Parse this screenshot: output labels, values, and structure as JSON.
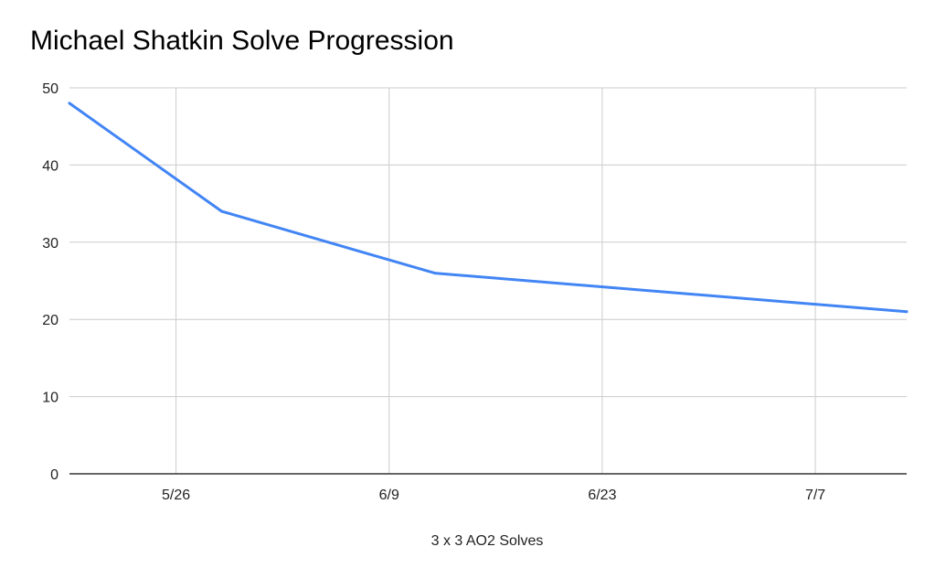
{
  "chart_data": {
    "type": "line",
    "title": "Michael Shatkin Solve Progression",
    "xlabel": "3 x 3 AO2 Solves",
    "ylabel": "",
    "x": [
      "2020-05-19",
      "2020-05-29",
      "2020-06-12",
      "2020-07-13"
    ],
    "y": [
      48,
      34,
      26,
      21
    ],
    "xticks": [
      {
        "date": "2020-05-26",
        "label": "5/26"
      },
      {
        "date": "2020-06-09",
        "label": "6/9"
      },
      {
        "date": "2020-06-23",
        "label": "6/23"
      },
      {
        "date": "2020-07-07",
        "label": "7/7"
      }
    ],
    "xlim": [
      "2020-05-19",
      "2020-07-13"
    ],
    "ylim": [
      0,
      50
    ],
    "yticks": [
      0,
      10,
      20,
      30,
      40,
      50
    ],
    "grid": true,
    "legend": "none",
    "line_color": "#4285f4",
    "grid_color": "#cccccc",
    "axis_color": "#333333"
  }
}
